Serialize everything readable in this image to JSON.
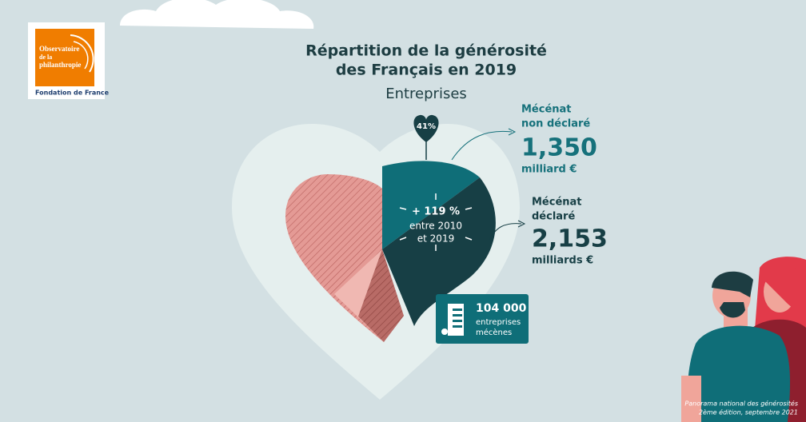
{
  "logo": {
    "name": [
      "Observatoire",
      "de la",
      "philanthropie"
    ],
    "org": "Fondation de France"
  },
  "title": [
    "Répartition de la générosité",
    "des Français en 2019"
  ],
  "subtitle": "Entreprises",
  "share": "41%",
  "growth": {
    "value": "+ 119 %",
    "period": [
      "entre 2010",
      "et 2019"
    ]
  },
  "items": [
    {
      "label": [
        "Mécénat",
        "non déclaré"
      ],
      "amount": "1,350",
      "unit": "milliard €"
    },
    {
      "label": [
        "Mécénat",
        "déclaré"
      ],
      "amount": "2,153",
      "unit": "milliards €"
    }
  ],
  "companies": {
    "count": "104 000",
    "label": [
      "entreprises",
      "mécènes"
    ]
  },
  "source": [
    "Panorama national des générosités",
    "2ème édition, septembre 2021"
  ]
}
